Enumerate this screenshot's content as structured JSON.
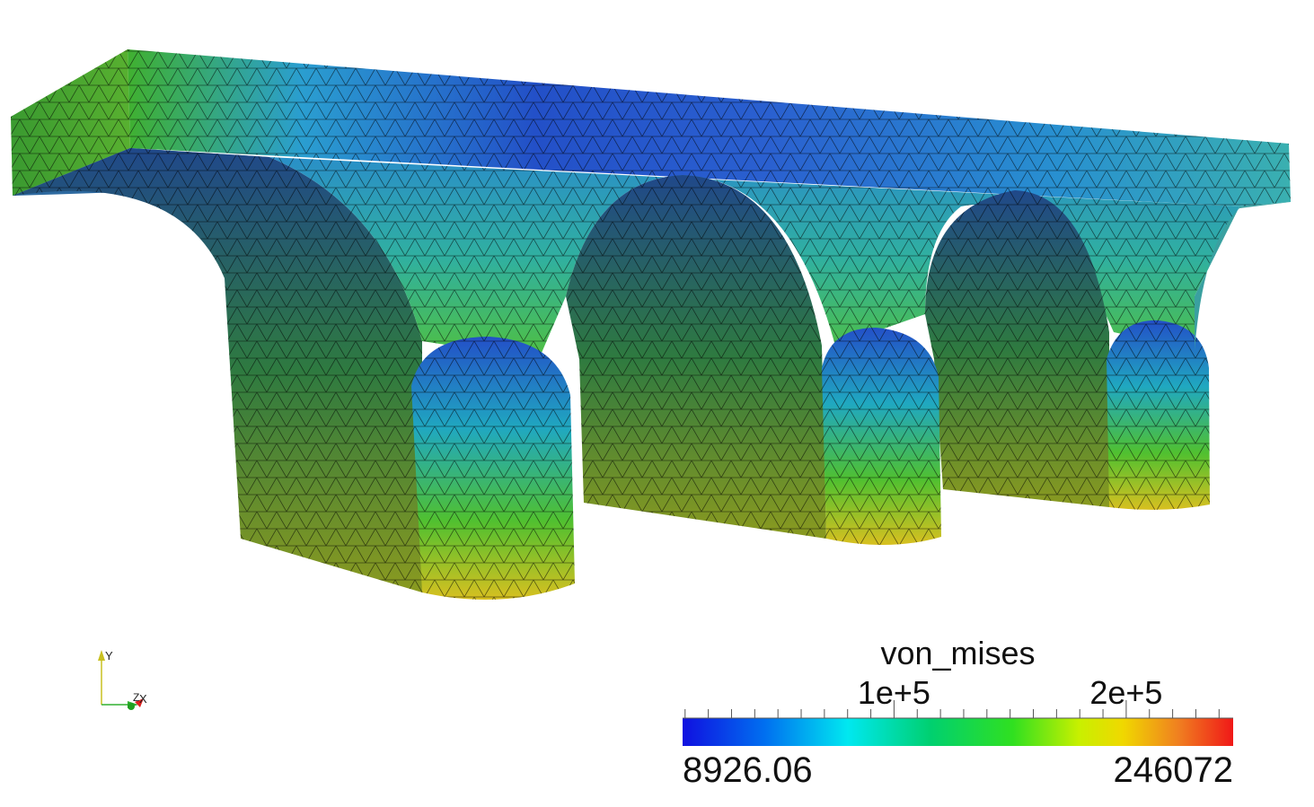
{
  "colorbar": {
    "title": "von_mises",
    "min_label": "8926.06",
    "max_label": "246072",
    "min": 8926.06,
    "max": 246072,
    "ticks": [
      {
        "value": 100000,
        "label": "1e+5"
      },
      {
        "value": 200000,
        "label": "2e+5"
      }
    ],
    "colors": [
      "#1010e0",
      "#0070f0",
      "#00e8f0",
      "#00d070",
      "#30e020",
      "#c8f000",
      "#f0d800",
      "#f08020",
      "#f01818"
    ]
  },
  "axes": {
    "y_label": "Y",
    "z_label": "Z",
    "x_label": "X"
  },
  "mesh_colors": {
    "blue": "#2350c8",
    "cyan": "#15b0b8",
    "green": "#3aa838",
    "yellow": "#c8c020",
    "orange": "#e0a020",
    "dark": "#2a6a40"
  }
}
